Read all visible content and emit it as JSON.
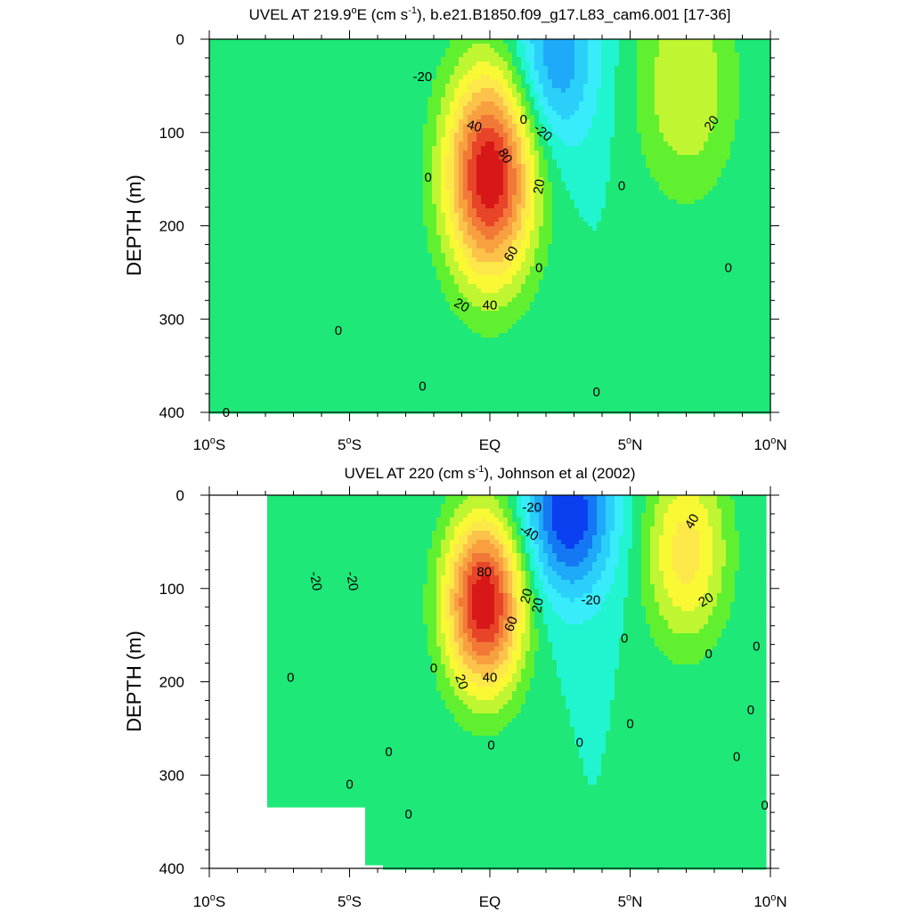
{
  "figure": {
    "background": "#ffffff"
  },
  "chart_data": [
    {
      "type": "heatmap",
      "subtype": "filled contour (depth vs latitude section)",
      "title": "UVEL AT 219.9°E (cm s⁻¹), b.e21.B1850.f09_g17.L83_cam6.001 [17-36]",
      "title_parts": {
        "pre": "UVEL AT 219.9",
        "deg": "o",
        "mid": "E (cm s",
        "sup": "-1",
        "post": "), b.e21.B1850.f09_g17.L83_cam6.001 [17-36]"
      },
      "xlabel": "",
      "ylabel": "DEPTH (m)",
      "x_unit": "degrees latitude",
      "xlim": [
        -10,
        10
      ],
      "ylim": [
        400,
        0
      ],
      "y_inverted": true,
      "x_ticks": [
        {
          "value": -10,
          "num": "10",
          "hemi": "S"
        },
        {
          "value": -5,
          "num": "5",
          "hemi": "S"
        },
        {
          "value": 0,
          "num": "",
          "hemi": "EQ"
        },
        {
          "value": 5,
          "num": "5",
          "hemi": "N"
        },
        {
          "value": 10,
          "num": "10",
          "hemi": "N"
        }
      ],
      "y_ticks": [
        0,
        100,
        200,
        300,
        400
      ],
      "y_tick_labels": [
        "0",
        "100",
        "200",
        "300",
        "400"
      ],
      "contour_interval": 10,
      "features": [
        {
          "name": "Equatorial Undercurrent core",
          "lat": 0,
          "depth": 145,
          "value": 100,
          "lat_halfwidth": 1.6,
          "depth_halfwidth": 115
        },
        {
          "name": "Westward flow (SEC) near surface",
          "lat": 2.3,
          "depth": 20,
          "value": -40,
          "lat_halfwidth": 1.5,
          "depth_halfwidth": 100
        },
        {
          "name": "Eastward countercurrent (NECC)",
          "lat": 7,
          "depth": 50,
          "value": 30,
          "lat_halfwidth": 1.8,
          "depth_halfwidth": 120
        }
      ],
      "contour_labels": [
        {
          "text": "-20",
          "lat": -2.4,
          "depth": 40,
          "rotate": 0
        },
        {
          "text": "40",
          "lat": -0.55,
          "depth": 93,
          "rotate": 15
        },
        {
          "text": "0",
          "lat": 1.2,
          "depth": 86,
          "rotate": 0
        },
        {
          "text": "-20",
          "lat": 1.9,
          "depth": 100,
          "rotate": 40
        },
        {
          "text": "20",
          "lat": 7.9,
          "depth": 90,
          "rotate": -55
        },
        {
          "text": "80",
          "lat": 0.55,
          "depth": 125,
          "rotate": 60
        },
        {
          "text": "0",
          "lat": -2.2,
          "depth": 148,
          "rotate": 0
        },
        {
          "text": "20",
          "lat": 1.75,
          "depth": 158,
          "rotate": -80
        },
        {
          "text": "0",
          "lat": 4.7,
          "depth": 157,
          "rotate": 0
        },
        {
          "text": "60",
          "lat": 0.75,
          "depth": 230,
          "rotate": -60
        },
        {
          "text": "0",
          "lat": 1.75,
          "depth": 245,
          "rotate": 0
        },
        {
          "text": "0",
          "lat": 8.5,
          "depth": 245,
          "rotate": 0
        },
        {
          "text": "20",
          "lat": -1.0,
          "depth": 285,
          "rotate": 30
        },
        {
          "text": "40",
          "lat": 0.0,
          "depth": 285,
          "rotate": 0
        },
        {
          "text": "0",
          "lat": -5.4,
          "depth": 312,
          "rotate": 0
        },
        {
          "text": "0",
          "lat": -2.4,
          "depth": 372,
          "rotate": 0
        },
        {
          "text": "0",
          "lat": 3.8,
          "depth": 378,
          "rotate": 0
        },
        {
          "text": "0",
          "lat": -9.4,
          "depth": 442,
          "rotate": 0
        }
      ]
    },
    {
      "type": "heatmap",
      "subtype": "filled contour (depth vs latitude section)",
      "title": "UVEL AT 220 (cm s⁻¹), Johnson et al (2002)",
      "title_parts": {
        "pre": "UVEL AT 220 (cm s",
        "sup": "-1",
        "post": "), Johnson et al (2002)"
      },
      "xlabel": "",
      "ylabel": "DEPTH (m)",
      "x_unit": "degrees latitude",
      "xlim": [
        -10,
        10
      ],
      "ylim": [
        400,
        0
      ],
      "y_inverted": true,
      "data_extent": {
        "lat_min": -8,
        "lat_max": 9.9,
        "note": "missing data (white) west of 8°S and at deepest levels"
      },
      "x_ticks": [
        {
          "value": -10,
          "num": "10",
          "hemi": "S"
        },
        {
          "value": -5,
          "num": "5",
          "hemi": "S"
        },
        {
          "value": 0,
          "num": "",
          "hemi": "EQ"
        },
        {
          "value": 5,
          "num": "5",
          "hemi": "N"
        },
        {
          "value": 10,
          "num": "10",
          "hemi": "N"
        }
      ],
      "y_ticks": [
        0,
        100,
        200,
        300,
        400
      ],
      "y_tick_labels": [
        "0",
        "100",
        "200",
        "300",
        "400"
      ],
      "contour_interval": 10,
      "features": [
        {
          "name": "Equatorial Undercurrent core",
          "lat": -0.2,
          "depth": 115,
          "value": 100,
          "lat_halfwidth": 1.4,
          "depth_halfwidth": 95
        },
        {
          "name": "Westward flow (SEC) near surface",
          "lat": 2.8,
          "depth": 20,
          "value": -60,
          "lat_halfwidth": 1.6,
          "depth_halfwidth": 90
        },
        {
          "name": "Eastward countercurrent (NECC)",
          "lat": 7,
          "depth": 60,
          "value": 45,
          "lat_halfwidth": 1.5,
          "depth_halfwidth": 100
        }
      ],
      "contour_labels": [
        {
          "text": "-20",
          "lat": 1.5,
          "depth": 13,
          "rotate": 0
        },
        {
          "text": "40",
          "lat": 7.2,
          "depth": 28,
          "rotate": -60
        },
        {
          "text": "-40",
          "lat": 1.4,
          "depth": 40,
          "rotate": 30
        },
        {
          "text": "-20",
          "lat": -6.2,
          "depth": 92,
          "rotate": 80
        },
        {
          "text": "-20",
          "lat": -4.9,
          "depth": 92,
          "rotate": 80
        },
        {
          "text": "80",
          "lat": -0.2,
          "depth": 82,
          "rotate": 0
        },
        {
          "text": "20",
          "lat": 1.3,
          "depth": 108,
          "rotate": -75
        },
        {
          "text": "-20",
          "lat": 3.6,
          "depth": 112,
          "rotate": 0
        },
        {
          "text": "20",
          "lat": 7.7,
          "depth": 112,
          "rotate": -30
        },
        {
          "text": "20",
          "lat": 1.7,
          "depth": 118,
          "rotate": -80
        },
        {
          "text": "60",
          "lat": 0.75,
          "depth": 138,
          "rotate": -70
        },
        {
          "text": "0",
          "lat": 4.8,
          "depth": 153,
          "rotate": 0
        },
        {
          "text": "0",
          "lat": 9.5,
          "depth": 162,
          "rotate": 0
        },
        {
          "text": "0",
          "lat": 7.8,
          "depth": 170,
          "rotate": 0
        },
        {
          "text": "0",
          "lat": -2.0,
          "depth": 185,
          "rotate": 0
        },
        {
          "text": "0",
          "lat": -7.1,
          "depth": 195,
          "rotate": 0
        },
        {
          "text": "20",
          "lat": -1.0,
          "depth": 200,
          "rotate": 70
        },
        {
          "text": "40",
          "lat": 0.0,
          "depth": 195,
          "rotate": 0
        },
        {
          "text": "0",
          "lat": 9.3,
          "depth": 230,
          "rotate": 0
        },
        {
          "text": "0",
          "lat": 5.0,
          "depth": 245,
          "rotate": 0
        },
        {
          "text": "0",
          "lat": 3.2,
          "depth": 265,
          "rotate": 0
        },
        {
          "text": "0",
          "lat": 0.05,
          "depth": 268,
          "rotate": 0
        },
        {
          "text": "0",
          "lat": -3.6,
          "depth": 275,
          "rotate": 0
        },
        {
          "text": "0",
          "lat": 8.8,
          "depth": 280,
          "rotate": 0
        },
        {
          "text": "0",
          "lat": -5.0,
          "depth": 310,
          "rotate": 0
        },
        {
          "text": "0",
          "lat": 9.8,
          "depth": 332,
          "rotate": 0
        },
        {
          "text": "0",
          "lat": -2.9,
          "depth": 342,
          "rotate": 0
        }
      ]
    }
  ],
  "colormap": {
    "levels": [
      -60,
      -50,
      -40,
      -30,
      -20,
      -10,
      0,
      10,
      20,
      30,
      40,
      50,
      60,
      70,
      80,
      90,
      100
    ],
    "colors": [
      "#0018c8",
      "#0a40f0",
      "#1478f5",
      "#1eaaf8",
      "#2ad0fa",
      "#38ecfa",
      "#20f5d0",
      "#1ee878",
      "#60f030",
      "#c0f532",
      "#f8f834",
      "#fde84a",
      "#fcc24a",
      "#f8a040",
      "#f27838",
      "#e84428",
      "#d81818",
      "#c00c0c"
    ],
    "line_color": "#000000"
  }
}
